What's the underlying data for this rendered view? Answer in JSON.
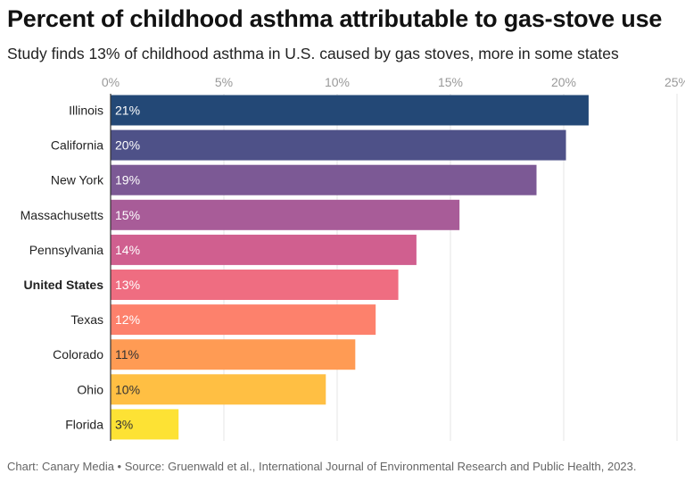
{
  "title": "Percent of childhood asthma attributable to gas-stove use",
  "subtitle": "Study finds 13% of childhood asthma in U.S. caused by gas stoves, more in some states",
  "footer": "Chart: Canary Media • Source: Gruenwald et al., International Journal of Environmental Research and Public Health, 2023.",
  "chart_data": {
    "type": "bar",
    "orientation": "horizontal",
    "categories": [
      "Illinois",
      "California",
      "New York",
      "Massachusetts",
      "Pennsylvania",
      "United States",
      "Texas",
      "Colorado",
      "Ohio",
      "Florida"
    ],
    "values": [
      21.1,
      20.1,
      18.8,
      15.4,
      13.5,
      12.7,
      11.7,
      10.8,
      9.5,
      3.0
    ],
    "labels": [
      "21%",
      "20%",
      "19%",
      "15%",
      "14%",
      "13%",
      "12%",
      "11%",
      "10%",
      "3%"
    ],
    "highlight": [
      "United States"
    ],
    "colors": [
      "#234876",
      "#4e5188",
      "#7c5995",
      "#a85c98",
      "#d05f8f",
      "#ef6d81",
      "#fd816c",
      "#ff9b54",
      "#ffbf43",
      "#fde234"
    ],
    "label_colors": [
      "#ffffff",
      "#ffffff",
      "#ffffff",
      "#ffffff",
      "#ffffff",
      "#ffffff",
      "#ffffff",
      "#333333",
      "#333333",
      "#333333"
    ],
    "xticks": [
      "0%",
      "5%",
      "10%",
      "15%",
      "20%",
      "25%"
    ],
    "xtick_values": [
      0,
      5,
      10,
      15,
      20,
      25
    ],
    "xlim": [
      0,
      25
    ],
    "grid": true,
    "axis_position": "top"
  }
}
